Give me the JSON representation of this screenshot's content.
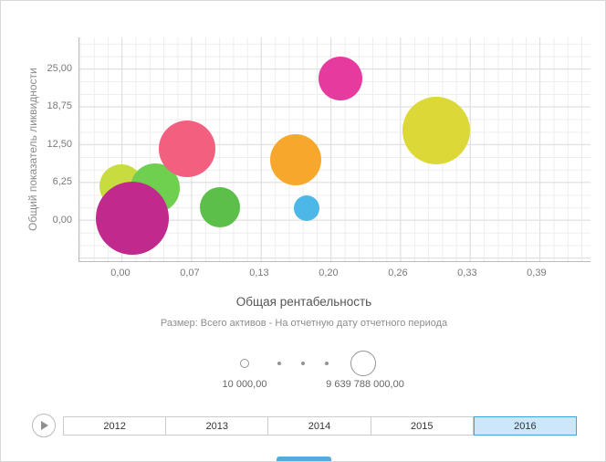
{
  "chart_data": {
    "type": "scatter",
    "subtype": "bubble",
    "title": "",
    "xlabel": "Общая рентабельность",
    "ylabel": "Общий показатель ликвидности",
    "size_caption": "Размер: Всего активов - На отчетную дату отчетного периода",
    "grid": true,
    "xlim": [
      -0.0393,
      0.4397
    ],
    "ylim": [
      -6.8,
      30.1
    ],
    "xticks": [
      {
        "v": 0.0,
        "label": "0,00"
      },
      {
        "v": 0.065,
        "label": "0,07"
      },
      {
        "v": 0.13,
        "label": "0,13"
      },
      {
        "v": 0.195,
        "label": "0,20"
      },
      {
        "v": 0.26,
        "label": "0,26"
      },
      {
        "v": 0.325,
        "label": "0,33"
      },
      {
        "v": 0.39,
        "label": "0,39"
      }
    ],
    "yticks": [
      {
        "v": 0.0,
        "label": "0,00"
      },
      {
        "v": 6.25,
        "label": "6,25"
      },
      {
        "v": 12.5,
        "label": "12,50"
      },
      {
        "v": 18.75,
        "label": "18,75"
      },
      {
        "v": 25.0,
        "label": "25,00"
      }
    ],
    "points": [
      {
        "x": 0.0,
        "y": 5.6,
        "r": 24,
        "color": "#c8dc3f"
      },
      {
        "x": 0.032,
        "y": 5.2,
        "r": 27,
        "color": "#6ed04e"
      },
      {
        "x": 0.01,
        "y": 0.3,
        "r": 40,
        "color": "#c02a8c"
      },
      {
        "x": 0.062,
        "y": 11.8,
        "r": 31,
        "color": "#f25f7f"
      },
      {
        "x": 0.092,
        "y": 2.1,
        "r": 22,
        "color": "#5bbf4a"
      },
      {
        "x": 0.163,
        "y": 9.9,
        "r": 28,
        "color": "#f7a72c"
      },
      {
        "x": 0.174,
        "y": 1.9,
        "r": 14,
        "color": "#4cb8e8"
      },
      {
        "x": 0.205,
        "y": 23.3,
        "r": 24,
        "color": "#e73a9e"
      },
      {
        "x": 0.295,
        "y": 14.8,
        "r": 37,
        "color": "#dcd838"
      }
    ]
  },
  "size_legend": {
    "min_label": "10 000,00",
    "max_label": "9 639 788 000,00"
  },
  "timeline": {
    "years": [
      "2012",
      "2013",
      "2014",
      "2015",
      "2016"
    ],
    "selected": "2016"
  }
}
